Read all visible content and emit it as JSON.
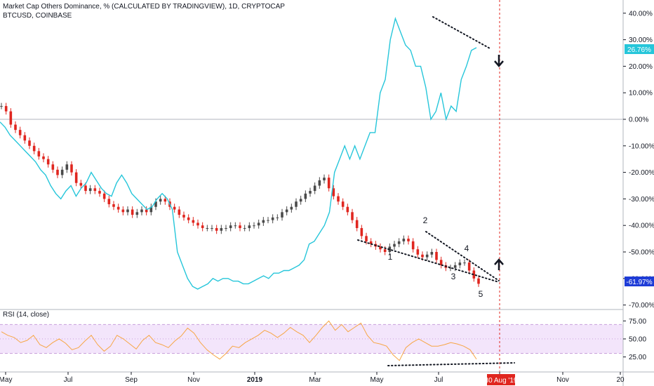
{
  "header": {
    "title": "Market Cap Others Dominance, % (CALCULATED BY TRADINGVIEW), 1D, CRYPTOCAP",
    "compare_label": "BTCUSD, COINBASE"
  },
  "colors": {
    "background": "#ffffff",
    "price_line": "#26c6da",
    "candle_up": "#4a4a4a",
    "candle_down": "#e0261f",
    "rsi_line": "#f7a645",
    "rsi_band": "#f3e5fb",
    "rsi_band_border": "#c9a0dc",
    "target_line": "#e0261f",
    "trend_dots": "#131722"
  },
  "chart_data": [
    {
      "type": "line",
      "title": "Market Cap Others Dominance, % (CALCULATED BY TRADINGVIEW), 1D, CRYPTOCAP",
      "subtitle": "BTCUSD, COINBASE",
      "x_ticks": [
        "May",
        "Jul",
        "Sep",
        "Nov",
        "2019",
        "Mar",
        "May",
        "Jul",
        "30 Aug '19",
        "Nov",
        "20"
      ],
      "y_ticks": [
        "40.00%",
        "30.00%",
        "20.00%",
        "10.00%",
        "0.00%",
        "-10.00%",
        "-20.00%",
        "-30.00%",
        "-40.00%",
        "-50.00%",
        "-60.00%",
        "-70.00%"
      ],
      "ylim": [
        -70,
        40
      ],
      "y_unit": "%",
      "zero_line": 0,
      "x_marker": "30 Aug '19",
      "last_values": {
        "cyan": "26.76%",
        "candles": "-61.97%"
      },
      "series": [
        {
          "style": "candles",
          "values": [
            5,
            3,
            -2,
            -4,
            -6,
            -8,
            -10,
            -12,
            -14,
            -15,
            -17,
            -19,
            -21,
            -19,
            -17,
            -20,
            -24,
            -25,
            -27,
            -26,
            -27,
            -28,
            -30,
            -32,
            -33,
            -34,
            -35,
            -34,
            -36,
            -35,
            -34,
            -35,
            -33,
            -31,
            -30,
            -31,
            -33,
            -34,
            -36,
            -37,
            -38,
            -39,
            -40,
            -41,
            -41,
            -41,
            -42,
            -41,
            -41,
            -40,
            -40,
            -41,
            -41,
            -40,
            -40,
            -39,
            -38,
            -38,
            -37,
            -37,
            -35,
            -34,
            -33,
            -31,
            -30,
            -28,
            -27,
            -25,
            -23,
            -22,
            -26,
            -29,
            -31,
            -33,
            -35,
            -38,
            -41,
            -44,
            -46,
            -47,
            -48,
            -49,
            -50,
            -48,
            -47,
            -46,
            -45,
            -46,
            -49,
            -51,
            -52,
            -51,
            -50,
            -53,
            -55,
            -56,
            -56,
            -55,
            -54,
            -54,
            -57,
            -60,
            -62
          ]
        },
        {
          "style": "line",
          "values": [
            -1,
            -3,
            -6,
            -8,
            -10,
            -12,
            -14,
            -16,
            -19,
            -21,
            -25,
            -28,
            -30,
            -27,
            -25,
            -29,
            -26,
            -24,
            -20,
            -23,
            -26,
            -28,
            -29,
            -24,
            -21,
            -24,
            -28,
            -30,
            -32,
            -34,
            -33,
            -30,
            -28,
            -30,
            -34,
            -50,
            -55,
            -60,
            -63,
            -64,
            -63,
            -62,
            -60,
            -61,
            -60,
            -60,
            -61,
            -61,
            -62,
            -62,
            -61,
            -60,
            -59,
            -60,
            -58,
            -58,
            -57,
            -57,
            -56,
            -55,
            -53,
            -47,
            -46,
            -43,
            -40,
            -35,
            -20,
            -15,
            -10,
            -15,
            -10,
            -15,
            -10,
            -5,
            -5,
            10,
            15,
            30,
            38,
            33,
            28,
            26,
            20,
            20,
            12,
            0,
            3,
            10,
            0,
            5,
            3,
            15,
            20,
            26,
            27
          ]
        }
      ]
    },
    {
      "type": "line",
      "title": "RSI (14, close)",
      "ylim": [
        10,
        85
      ],
      "y_ticks": [
        "75.00",
        "50.00",
        "25.00"
      ],
      "bands": [
        30,
        70
      ],
      "values": [
        60,
        55,
        52,
        45,
        48,
        55,
        42,
        38,
        45,
        50,
        44,
        35,
        38,
        47,
        55,
        42,
        33,
        40,
        55,
        50,
        43,
        36,
        48,
        55,
        45,
        42,
        38,
        47,
        54,
        65,
        58,
        45,
        35,
        28,
        22,
        30,
        40,
        38,
        45,
        50,
        55,
        62,
        58,
        52,
        58,
        66,
        60,
        55,
        45,
        55,
        66,
        75,
        62,
        70,
        60,
        66,
        72,
        55,
        45,
        43,
        40,
        28,
        20,
        38,
        45,
        50,
        45,
        40,
        40,
        42,
        45,
        43,
        40,
        35,
        22
      ]
    }
  ],
  "annotations": {
    "wave_labels": [
      "1",
      "2",
      "3",
      "4",
      "5"
    ]
  }
}
